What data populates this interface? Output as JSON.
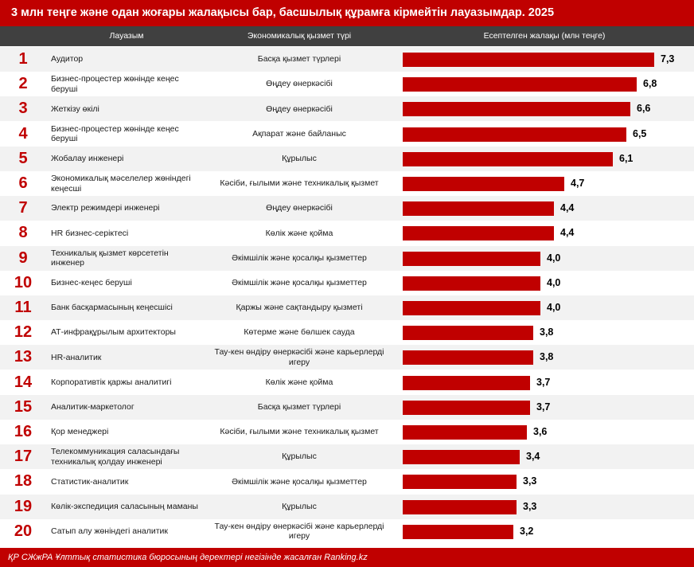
{
  "title": "3 млн теңге және одан жоғары жалақысы бар, басшылық құрамға кірмейтін лауазымдар. 2025",
  "headers": {
    "position": "Лауазым",
    "sector": "Экономикалық қызмет түрі",
    "salary": "Есептелген жалақы (млн теңге)"
  },
  "footer": "ҚР СЖжРА Ұлттық статистика бюросының деректері негізінде жасалған Ranking.kz",
  "chart_data": {
    "type": "bar",
    "orientation": "horizontal",
    "title": "3 млн теңге және одан жоғары жалақысы бар, басшылық құрамға кірмейтін лауазымдар. 2025",
    "xlabel": "Есептелген жалақы (млн теңге)",
    "xlim": [
      0,
      7.3
    ],
    "rows": [
      {
        "rank": "1",
        "position": "Аудитор",
        "sector": "Басқа қызмет түрлері",
        "value": 7.3,
        "label": "7,3"
      },
      {
        "rank": "2",
        "position": "Бизнес-процестер жөнінде кеңес беруші",
        "sector": "Өңдеу өнеркәсібі",
        "value": 6.8,
        "label": "6,8"
      },
      {
        "rank": "3",
        "position": "Жеткізу өкілі",
        "sector": "Өңдеу өнеркәсібі",
        "value": 6.6,
        "label": "6,6"
      },
      {
        "rank": "4",
        "position": "Бизнес-процестер жөнінде кеңес беруші",
        "sector": "Ақпарат және байланыс",
        "value": 6.5,
        "label": "6,5"
      },
      {
        "rank": "5",
        "position": "Жобалау инженері",
        "sector": "Құрылыс",
        "value": 6.1,
        "label": "6,1"
      },
      {
        "rank": "6",
        "position": "Экономикалық мәселелер жөніндегі кеңесші",
        "sector": "Кәсіби, ғылыми және техникалық қызмет",
        "value": 4.7,
        "label": "4,7"
      },
      {
        "rank": "7",
        "position": "Электр режимдері инженері",
        "sector": "Өңдеу өнеркәсібі",
        "value": 4.4,
        "label": "4,4"
      },
      {
        "rank": "8",
        "position": "HR бизнес-серіктесі",
        "sector": "Көлік және қойма",
        "value": 4.4,
        "label": "4,4"
      },
      {
        "rank": "9",
        "position": "Техникалық қызмет көрсететін инженер",
        "sector": "Әкімшілік және қосалқы қызметтер",
        "value": 4.0,
        "label": "4,0"
      },
      {
        "rank": "10",
        "position": "Бизнес-кеңес беруші",
        "sector": "Әкімшілік және қосалқы қызметтер",
        "value": 4.0,
        "label": "4,0"
      },
      {
        "rank": "11",
        "position": "Банк басқармасының кеңесшісі",
        "sector": "Қаржы және сақтандыру қызметі",
        "value": 4.0,
        "label": "4,0"
      },
      {
        "rank": "12",
        "position": "АТ-инфрақұрылым архитекторы",
        "sector": "Көтерме және бөлшек сауда",
        "value": 3.8,
        "label": "3,8"
      },
      {
        "rank": "13",
        "position": "HR-аналитик",
        "sector": "Тау-кен өндіру өнеркәсібі және карьерлерді игеру",
        "value": 3.8,
        "label": "3,8"
      },
      {
        "rank": "14",
        "position": "Корпоративтік қаржы аналитигі",
        "sector": "Көлік және қойма",
        "value": 3.7,
        "label": "3,7"
      },
      {
        "rank": "15",
        "position": "Аналитик-маркетолог",
        "sector": "Басқа қызмет түрлері",
        "value": 3.7,
        "label": "3,7"
      },
      {
        "rank": "16",
        "position": "Қор менеджері",
        "sector": "Кәсіби, ғылыми және техникалық қызмет",
        "value": 3.6,
        "label": "3,6"
      },
      {
        "rank": "17",
        "position": "Телекоммуникация саласындағы техникалық қолдау инженері",
        "sector": "Құрылыс",
        "value": 3.4,
        "label": "3,4"
      },
      {
        "rank": "18",
        "position": "Статистик-аналитик",
        "sector": "Әкімшілік және қосалқы қызметтер",
        "value": 3.3,
        "label": "3,3"
      },
      {
        "rank": "19",
        "position": "Көлік-экспедиция саласының маманы",
        "sector": "Құрылыс",
        "value": 3.3,
        "label": "3,3"
      },
      {
        "rank": "20",
        "position": "Сатып алу жөніндегі аналитик",
        "sector": "Тау-кен өндіру өнеркәсібі және карьерлерді игеру",
        "value": 3.2,
        "label": "3,2"
      }
    ]
  },
  "colors": {
    "accent": "#c00000",
    "header_bg": "#404040",
    "stripe": "#f2f2f2"
  }
}
